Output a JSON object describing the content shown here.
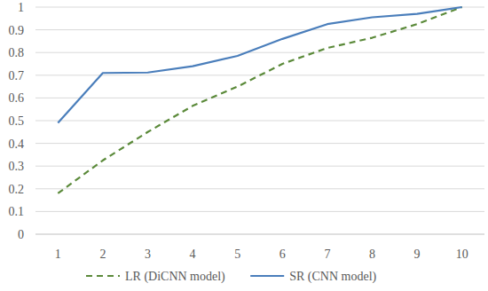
{
  "chart_data": {
    "type": "line",
    "categories": [
      "1",
      "2",
      "3",
      "4",
      "5",
      "6",
      "7",
      "8",
      "9",
      "10"
    ],
    "series": [
      {
        "name": "LR (DiCNN model)",
        "color": "#5b8a3a",
        "line_style": "dashed",
        "values": [
          0.18,
          0.325,
          0.45,
          0.565,
          0.65,
          0.75,
          0.82,
          0.865,
          0.925,
          1.0
        ]
      },
      {
        "name": "SR (CNN model)",
        "color": "#4a7ebb",
        "line_style": "solid",
        "values": [
          0.49,
          0.71,
          0.712,
          0.74,
          0.785,
          0.86,
          0.925,
          0.955,
          0.97,
          1.0
        ]
      }
    ],
    "ylim": [
      0,
      1
    ],
    "yticks": [
      0,
      0.1,
      0.2,
      0.3,
      0.4,
      0.5,
      0.6,
      0.7,
      0.8,
      0.9,
      1
    ],
    "grid": true,
    "legend": "bottom"
  }
}
